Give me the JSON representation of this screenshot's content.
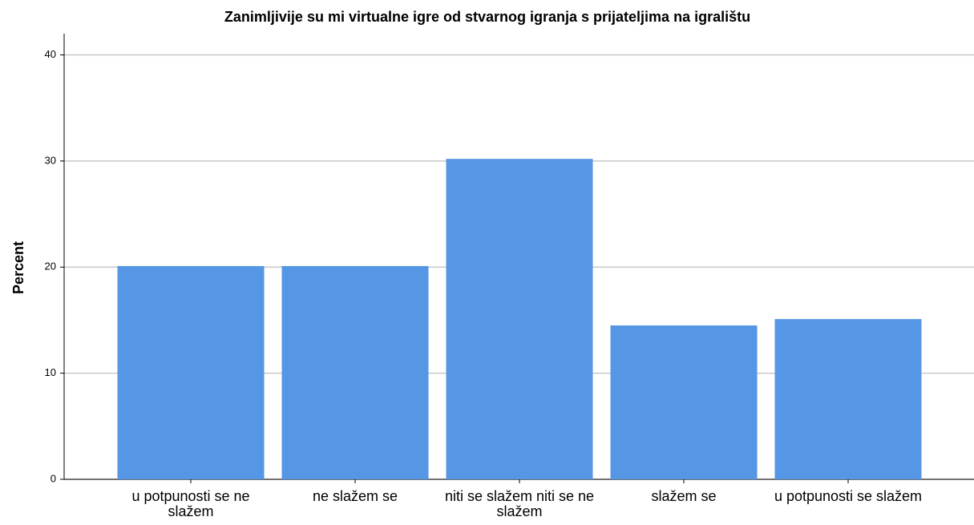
{
  "chart_data": {
    "type": "bar",
    "title": "Zanimljivije su mi virtualne igre od stvarnog igranja s prijateljima na igralištu",
    "y_label": "Percent",
    "categories": [
      "u potpunosti se ne slažem",
      "ne slažem se",
      "niti se slažem niti se ne slažem",
      "slažem se",
      "u potpunosti se slažem"
    ],
    "values": [
      20.1,
      20.1,
      30.2,
      14.5,
      15.1
    ],
    "color": "#5596e5",
    "ylim": [
      0,
      42
    ],
    "yticks": [
      0,
      10,
      20,
      30,
      40
    ],
    "grid": true
  }
}
